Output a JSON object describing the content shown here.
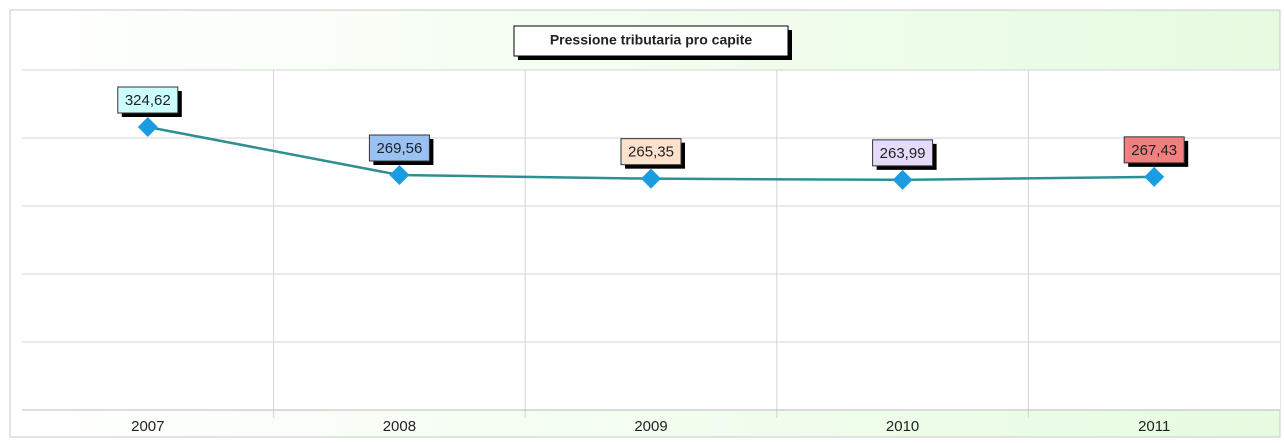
{
  "chart_data": {
    "type": "line",
    "title": "Pressione tributaria pro capite",
    "categories": [
      "2007",
      "2008",
      "2009",
      "2010",
      "2011"
    ],
    "series": [
      {
        "color": "#2e8f91",
        "marker_color": "#1a9de0",
        "values": [
          324.62,
          269.56,
          265.35,
          263.99,
          267.43
        ],
        "value_labels": [
          "324,62",
          "269,56",
          "265,35",
          "263,99",
          "267,43"
        ],
        "label_colors": [
          "#ccffff",
          "#99c2f2",
          "#fce2cc",
          "#e6dafa",
          "#f08080"
        ]
      }
    ],
    "ylim": [
      0,
      390
    ],
    "yticks": [
      0,
      78,
      156,
      234,
      312,
      390
    ],
    "grid": true
  }
}
